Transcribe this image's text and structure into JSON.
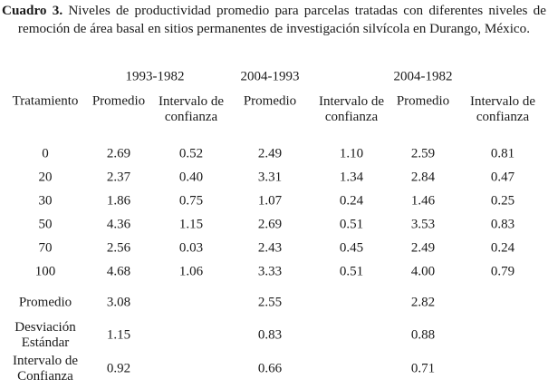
{
  "caption": {
    "label": "Cuadro 3.",
    "text": " Niveles de productividad promedio para parcelas tratadas con diferentes niveles de remoción de área basal en sitios permanentes de investigación silvícola en Durango, México."
  },
  "periods": [
    "1993-1982",
    "2004-1993",
    "2004-1982"
  ],
  "headers": [
    "Tratamiento",
    "Promedio",
    "Intervalo de\nconfianza",
    "Promedio",
    "Intervalo de\nconfianza",
    "Promedio",
    "Intervalo de\nconfianza"
  ],
  "rows": [
    [
      "0",
      "2.69",
      "0.52",
      "2.49",
      "1.10",
      "2.59",
      "0.81"
    ],
    [
      "20",
      "2.37",
      "0.40",
      "3.31",
      "1.34",
      "2.84",
      "0.47"
    ],
    [
      "30",
      "1.86",
      "0.75",
      "1.07",
      "0.24",
      "1.46",
      "0.25"
    ],
    [
      "50",
      "4.36",
      "1.15",
      "2.69",
      "0.51",
      "3.53",
      "0.83"
    ],
    [
      "70",
      "2.56",
      "0.03",
      "2.43",
      "0.45",
      "2.49",
      "0.24"
    ],
    [
      "100",
      "4.68",
      "1.06",
      "3.33",
      "0.51",
      "4.00",
      "0.79"
    ]
  ],
  "summary": [
    {
      "label": "Promedio",
      "values": [
        "3.08",
        "2.55",
        "2.82"
      ]
    },
    {
      "label": "Desviación\nEstándar",
      "values": [
        "1.15",
        "0.83",
        "0.88"
      ]
    },
    {
      "label": "Intervalo de\nConfianza",
      "values": [
        "0.92",
        "0.66",
        "0.71"
      ]
    }
  ]
}
